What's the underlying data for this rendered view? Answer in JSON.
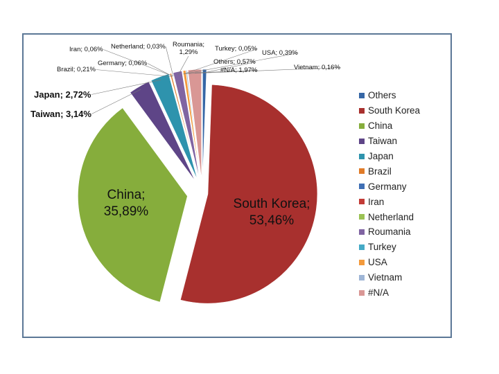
{
  "chart_data": {
    "type": "pie",
    "title": "",
    "legend_position": "right",
    "slices": [
      {
        "name": "Others",
        "value": 0.57,
        "label": "Others; 0,57%",
        "color": "#3667a6"
      },
      {
        "name": "South Korea",
        "value": 53.46,
        "label": "South Korea; 53,46%",
        "color": "#a8302e"
      },
      {
        "name": "China",
        "value": 35.89,
        "label": "China; 35,89%",
        "color": "#86ad3c"
      },
      {
        "name": "Taiwan",
        "value": 3.14,
        "label": "Taiwan; 3,14%",
        "color": "#5e4587"
      },
      {
        "name": "Japan",
        "value": 2.72,
        "label": "Japan; 2,72%",
        "color": "#2e93ad"
      },
      {
        "name": "Brazil",
        "value": 0.21,
        "label": "Brazil; 0,21%",
        "color": "#e07b28"
      },
      {
        "name": "Germany",
        "value": 0.06,
        "label": "Germany; 0,06%",
        "color": "#3f6fb5"
      },
      {
        "name": "Iran",
        "value": 0.06,
        "label": "Iran; 0,06%",
        "color": "#c23b36"
      },
      {
        "name": "Netherland",
        "value": 0.03,
        "label": "Netherland; 0,03%",
        "color": "#9bc254"
      },
      {
        "name": "Roumania",
        "value": 1.29,
        "label": "Roumania; 1,29%",
        "color": "#8064a2"
      },
      {
        "name": "Turkey",
        "value": 0.05,
        "label": "Turkey; 0,05%",
        "color": "#45aac6"
      },
      {
        "name": "USA",
        "value": 0.39,
        "label": "USA; 0,39%",
        "color": "#f39a3c"
      },
      {
        "name": "Vietnam",
        "value": 0.16,
        "label": "Vietnam; 0,16%",
        "color": "#9fb6d6"
      },
      {
        "name": "#N/A",
        "value": 1.97,
        "label": "#N/A; 1,97%",
        "color": "#d99795"
      }
    ]
  }
}
